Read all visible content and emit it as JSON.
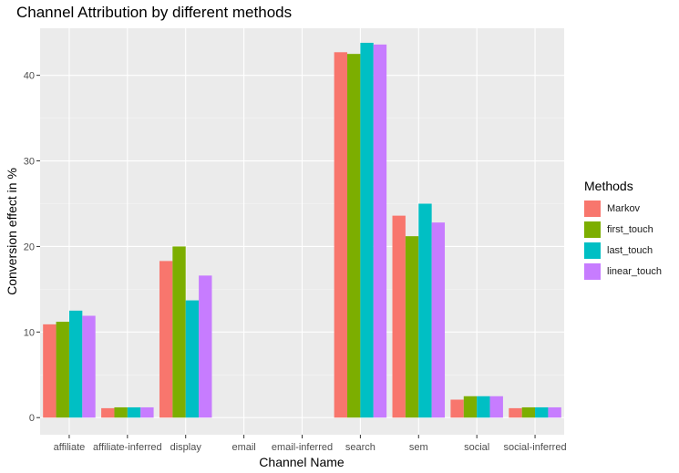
{
  "chart_data": {
    "type": "bar",
    "title": "Channel Attribution by different methods",
    "xlabel": "Channel Name",
    "ylabel": "Conversion effect in %",
    "categories": [
      "affiliate",
      "affiliate-inferred",
      "display",
      "email",
      "email-inferred",
      "search",
      "sem",
      "social",
      "social-inferred"
    ],
    "ylim": [
      -2,
      45.5
    ],
    "yticks": [
      0,
      10,
      20,
      30,
      40
    ],
    "grid": true,
    "legend": {
      "title": "Methods",
      "position": "right"
    },
    "series": [
      {
        "name": "Markov",
        "color": "#F8766D",
        "values": [
          10.9,
          1.1,
          18.3,
          0,
          0,
          42.7,
          23.6,
          2.1,
          1.1
        ]
      },
      {
        "name": "first_touch",
        "color": "#7CAE00",
        "values": [
          11.2,
          1.2,
          20.0,
          0,
          0,
          42.5,
          21.2,
          2.5,
          1.2
        ]
      },
      {
        "name": "last_touch",
        "color": "#00BFC4",
        "values": [
          12.5,
          1.2,
          13.7,
          0,
          0,
          43.8,
          25.0,
          2.5,
          1.2
        ]
      },
      {
        "name": "linear_touch",
        "color": "#C77CFF",
        "values": [
          11.9,
          1.2,
          16.6,
          0,
          0,
          43.6,
          22.8,
          2.5,
          1.2
        ]
      }
    ]
  }
}
